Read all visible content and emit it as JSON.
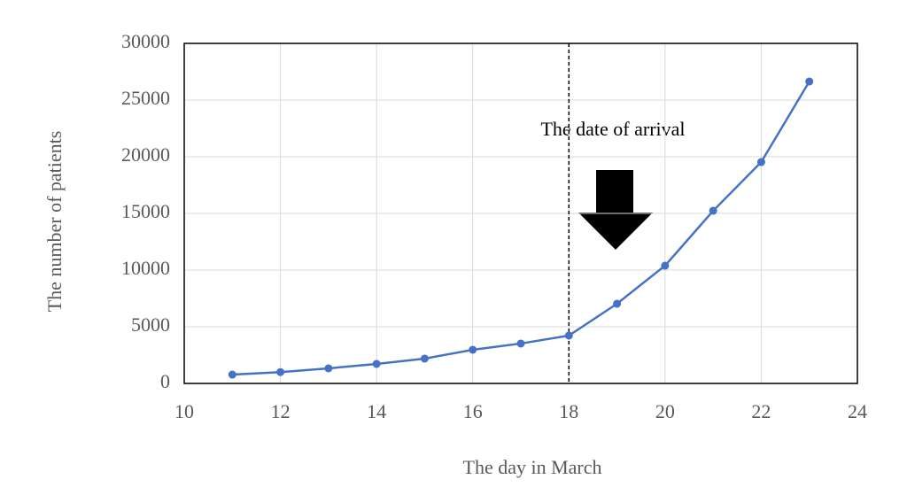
{
  "chart_data": {
    "type": "line",
    "x_label": "The day in March",
    "y_label": "The number of patients",
    "x": [
      11,
      12,
      13,
      14,
      15,
      16,
      17,
      18,
      19,
      20,
      21,
      22,
      23
    ],
    "series": [
      {
        "color": "#4472c4",
        "values": [
          780,
          1000,
          1330,
          1720,
          2190,
          2970,
          3520,
          4220,
          7030,
          10390,
          15230,
          19530,
          26640
        ]
      }
    ],
    "xlim": [
      10,
      24
    ],
    "xticks": [
      10,
      12,
      14,
      16,
      18,
      20,
      22,
      24
    ],
    "ylim": [
      0,
      30000
    ],
    "yticks": [
      0,
      5000,
      10000,
      15000,
      20000,
      25000,
      30000
    ],
    "grid": true,
    "annotation": {
      "text": "The date of arrival",
      "x": 18
    }
  }
}
